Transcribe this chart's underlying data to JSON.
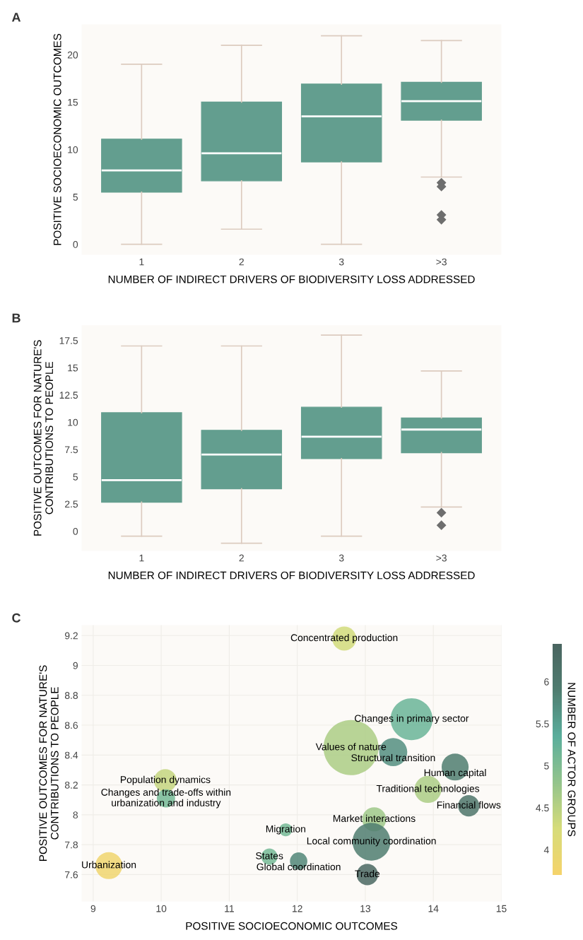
{
  "chart_data": [
    {
      "type": "box",
      "title": "A",
      "xlabel": "NUMBER OF INDIRECT DRIVERS OF BIODIVERSITY LOSS ADDRESSED",
      "ylabel": "POSITIVE SOCIOECONOMIC OUTCOMES",
      "categories": [
        "1",
        "2",
        "3",
        ">3"
      ],
      "color": "#639e8f",
      "ylim": [
        -1.1,
        23.2
      ],
      "yticks": [
        0,
        5,
        10,
        15,
        20
      ],
      "grid": false,
      "boxes": [
        {
          "low": 0,
          "q1": 5.5,
          "median": 7.8,
          "q3": 11.1,
          "high": 19.0
        },
        {
          "low": 1.6,
          "q1": 6.7,
          "median": 9.6,
          "q3": 15.0,
          "high": 21.0
        },
        {
          "low": 0,
          "q1": 8.7,
          "median": 13.5,
          "q3": 16.9,
          "high": 22.0
        },
        {
          "low": 7.1,
          "q1": 13.1,
          "median": 15.1,
          "q3": 17.1,
          "high": 21.5,
          "outliers": [
            6.5,
            6.1,
            3.1,
            2.6
          ]
        }
      ]
    },
    {
      "type": "box",
      "title": "B",
      "xlabel": "NUMBER OF INDIRECT DRIVERS OF BIODIVERSITY LOSS ADDRESSED",
      "ylabel": "POSITIVE OUTCOMES FOR NATURE'S\nCONTRIBUTIONS TO PEOPLE",
      "categories": [
        "1",
        "2",
        "3",
        ">3"
      ],
      "color": "#639e8f",
      "ylim": [
        -1.8,
        18.9
      ],
      "yticks": [
        0,
        2.5,
        5,
        7.5,
        10,
        12.5,
        15,
        17.5
      ],
      "grid": false,
      "boxes": [
        {
          "low": -0.45,
          "q1": 2.67,
          "median": 4.68,
          "q3": 10.87,
          "high": 17.0
        },
        {
          "low": -1.1,
          "q1": 3.9,
          "median": 7.04,
          "q3": 9.26,
          "high": 17.0
        },
        {
          "low": -0.45,
          "q1": 6.66,
          "median": 8.68,
          "q3": 11.38,
          "high": 18.0
        },
        {
          "low": 2.22,
          "q1": 7.21,
          "median": 9.33,
          "q3": 10.39,
          "high": 14.7,
          "outliers": [
            1.7,
            0.55
          ]
        }
      ]
    },
    {
      "type": "bubble",
      "title": "C",
      "xlabel": "POSITIVE SOCIOECONOMIC OUTCOMES",
      "ylabel": "POSITIVE OUTCOMES FOR NATURE'S\nCONTRIBUTIONS TO PEOPLE",
      "clabel": "NUMBER OF ACTOR GROUPS",
      "xlim": [
        8.83,
        15
      ],
      "xticks": [
        9,
        10,
        11,
        12,
        13,
        14,
        15
      ],
      "ylim": [
        7.42,
        9.27
      ],
      "yticks": [
        7.6,
        7.8,
        8,
        8.2,
        8.4,
        8.6,
        8.8,
        9,
        9.2
      ],
      "clim": [
        3.7,
        6.45
      ],
      "cticks": [
        4,
        4.5,
        5,
        5.5,
        6
      ],
      "grid": true,
      "x": [
        12.69,
        13.68,
        12.79,
        13.41,
        14.32,
        10.06,
        10.07,
        13.92,
        14.52,
        13.13,
        11.83,
        13.09,
        11.59,
        12.02,
        9.23,
        13.03
      ],
      "values": [
        9.18,
        8.64,
        8.45,
        8.42,
        8.32,
        8.23,
        8.11,
        8.17,
        8.06,
        7.97,
        7.9,
        7.82,
        7.72,
        7.69,
        7.66,
        7.6
      ],
      "sizes": [
        0.19,
        0.58,
        1,
        0.26,
        0.24,
        0.17,
        0.11,
        0.24,
        0.15,
        0.19,
        0.055,
        0.47,
        0.087,
        0.1,
        0.24,
        0.15
      ],
      "cvalues": [
        4.3,
        5.2,
        4.6,
        5.7,
        5.9,
        4.4,
        5.1,
        4.6,
        6.1,
        4.7,
        5.1,
        5.9,
        5.1,
        5.8,
        3.8,
        6.4
      ],
      "annotations": [
        {
          "text": "Concentrated production",
          "x": 12.69,
          "y": 9.18
        },
        {
          "text": "Changes in primary sector",
          "x": 13.68,
          "y": 8.64
        },
        {
          "text": "Values of nature",
          "x": 12.79,
          "y": 8.45
        },
        {
          "text": "Structural transition",
          "x": 13.41,
          "y": 8.42
        },
        {
          "text": "Human capital",
          "x": 14.32,
          "y": 8.32
        },
        {
          "text": "Population dynamics",
          "x": 10.06,
          "y": 8.23
        },
        {
          "text": "Changes and trade-offs within\nurbanization and industry",
          "x": 10.07,
          "y": 8.11
        },
        {
          "text": "Traditional technologies",
          "x": 13.92,
          "y": 8.17
        },
        {
          "text": "Financial flows",
          "x": 14.52,
          "y": 8.06
        },
        {
          "text": "Market interactions",
          "x": 13.13,
          "y": 7.97
        },
        {
          "text": "Migration",
          "x": 11.83,
          "y": 7.9
        },
        {
          "text": "Local community coordination",
          "x": 13.09,
          "y": 7.82
        },
        {
          "text": "States",
          "x": 11.59,
          "y": 7.72
        },
        {
          "text": "Global coordination",
          "x": 12.02,
          "y": 7.69
        },
        {
          "text": "Urbanization",
          "x": 9.23,
          "y": 7.66
        },
        {
          "text": "Trade",
          "x": 13.03,
          "y": 7.6
        }
      ]
    }
  ]
}
